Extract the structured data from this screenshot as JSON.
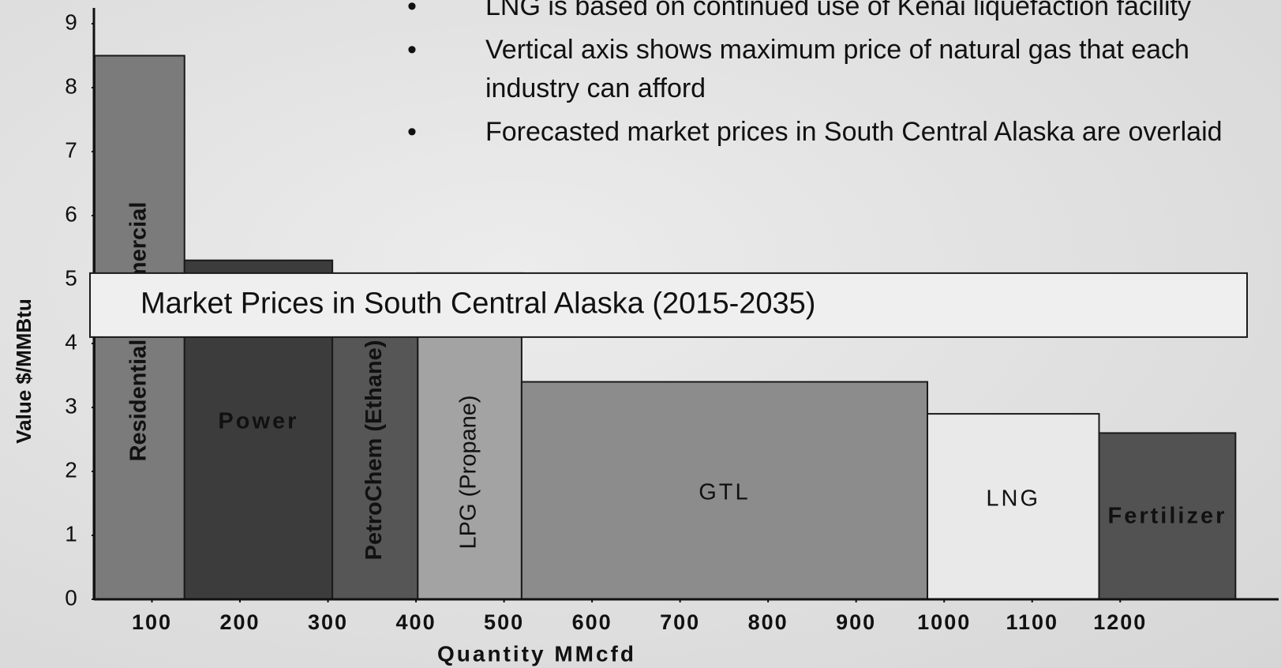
{
  "chart_data": {
    "type": "bar",
    "x_label": "Quantity MMcfd",
    "y_label": "Value $/MMBtu",
    "notes": [
      "LNG is based on continued use of Kenai liquefaction facility",
      "Vertical axis shows maximum price of natural gas that each industry can afford",
      "Forecasted market prices in South Central Alaska are overlaid"
    ],
    "categories": [
      "Residential Commercial",
      "Power",
      "PetroChem (Ethane)",
      "LPG (Propane)",
      "GTL",
      "LNG",
      "Fertilizer"
    ],
    "values": [
      8.5,
      5.3,
      5.0,
      5.1,
      3.4,
      2.9,
      2.6
    ],
    "bins": [
      35,
      137,
      305,
      402,
      520,
      981,
      1176,
      1331
    ],
    "colors": [
      "#7b7b7b",
      "#3c3c3c",
      "#565656",
      "#a3a3a3",
      "#8c8c8c",
      "#e9e9e9",
      "#525252"
    ],
    "band": {
      "label": "Market Prices in South Central Alaska (2015-2035)",
      "low": 4.1,
      "high": 5.1
    },
    "xlim": [
      35,
      1380
    ],
    "ylim": [
      0,
      9
    ],
    "xticks": [
      100,
      200,
      300,
      400,
      500,
      600,
      700,
      800,
      900,
      1000,
      1100,
      1200
    ],
    "yticks": [
      0,
      1,
      2,
      3,
      4,
      5,
      6,
      7,
      8,
      9
    ]
  }
}
